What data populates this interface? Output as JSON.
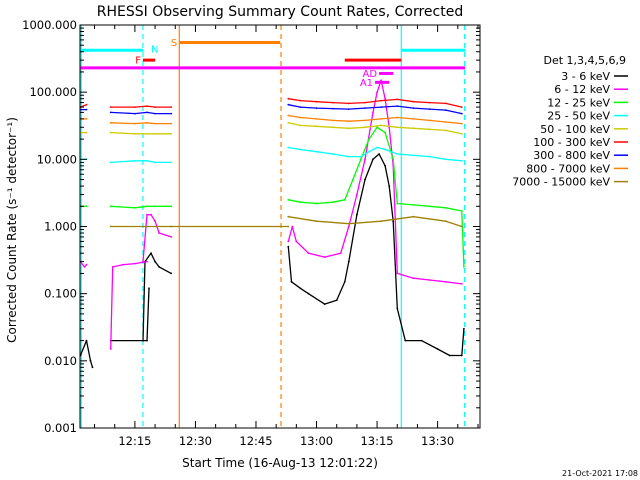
{
  "chart_data": {
    "type": "line",
    "title": "RHESSI Observing Summary Count Rates, Corrected",
    "xlabel": "Start Time (16-Aug-13 12:01:22)",
    "ylabel": "Corrected Count Rate (s⁻¹ detector⁻¹)",
    "x_unit": "minutes since 12:00",
    "xlim": [
      1.4,
      100.5
    ],
    "ylim": [
      0.001,
      1000
    ],
    "y_scale": "log",
    "x_tick_labels": [
      "12:15",
      "12:30",
      "12:45",
      "13:00",
      "13:15",
      "13:30"
    ],
    "x_tick_values": [
      15,
      30,
      45,
      60,
      75,
      90
    ],
    "y_tick_labels": [
      "1000.000",
      "100.000",
      "10.000",
      "1.000",
      "0.100",
      "0.010",
      "0.001"
    ],
    "y_tick_values": [
      1000,
      100,
      10,
      1,
      0.1,
      0.01,
      0.001
    ],
    "legend": {
      "title": "Det 1,3,4,5,6,9",
      "position": "right",
      "entries": [
        "3 - 6 keV",
        "6 - 12 keV",
        "12 - 25 keV",
        "25 - 50 keV",
        "50 - 100 keV",
        "100 - 300 keV",
        "300 - 800 keV",
        "800 - 7000 keV",
        "7000 - 15000 keV"
      ]
    },
    "series": [
      {
        "name": "3 - 6 keV",
        "color": "#000000",
        "segments": [
          [
            [
              1.5,
              0.012
            ],
            [
              3,
              0.02
            ],
            [
              4,
              0.01
            ],
            [
              4.5,
              0.008
            ]
          ],
          [
            [
              9,
              0.02
            ],
            [
              17,
              0.02
            ],
            [
              18,
              0.02
            ],
            [
              18.5,
              0.12
            ]
          ],
          [
            [
              17,
              0.02
            ],
            [
              17.5,
              0.3
            ],
            [
              19,
              0.4
            ],
            [
              20,
              0.3
            ],
            [
              21,
              0.25
            ],
            [
              24,
              0.2
            ]
          ],
          [
            [
              53,
              0.5
            ],
            [
              53.8,
              0.15
            ],
            [
              56,
              0.12
            ],
            [
              58,
              0.1
            ],
            [
              62,
              0.07
            ],
            [
              65,
              0.08
            ],
            [
              67,
              0.15
            ],
            [
              68,
              0.3
            ],
            [
              70,
              1.5
            ],
            [
              72,
              5
            ],
            [
              74,
              10
            ],
            [
              75.5,
              12
            ],
            [
              77,
              8
            ],
            [
              78,
              4
            ],
            [
              79,
              1.2
            ],
            [
              80,
              0.06
            ],
            [
              82,
              0.02
            ],
            [
              86,
              0.02
            ],
            [
              90,
              0.015
            ],
            [
              93,
              0.012
            ],
            [
              96,
              0.012
            ],
            [
              96.5,
              0.03
            ]
          ]
        ]
      },
      {
        "name": "6 - 12 keV",
        "color": "#ff00ff",
        "segments": [
          [
            [
              1.5,
              0.3
            ],
            [
              2.5,
              0.25
            ],
            [
              3,
              0.27
            ]
          ],
          [
            [
              9,
              0.015
            ],
            [
              9.5,
              0.25
            ],
            [
              12,
              0.27
            ],
            [
              15,
              0.28
            ],
            [
              18,
              0.3
            ]
          ],
          [
            [
              17,
              0.3
            ],
            [
              18,
              1.5
            ],
            [
              19,
              1.5
            ],
            [
              20,
              1.2
            ],
            [
              21,
              0.8
            ],
            [
              24,
              0.7
            ]
          ],
          [
            [
              53,
              0.6
            ],
            [
              54,
              1.0
            ],
            [
              55,
              0.6
            ],
            [
              58,
              0.4
            ],
            [
              62,
              0.35
            ],
            [
              66,
              0.4
            ],
            [
              68,
              1
            ],
            [
              70,
              3
            ],
            [
              72,
              10
            ],
            [
              74,
              50
            ],
            [
              75,
              100
            ],
            [
              76,
              150
            ],
            [
              77,
              80
            ],
            [
              78,
              30
            ],
            [
              79,
              8
            ],
            [
              80,
              0.2
            ],
            [
              84,
              0.17
            ],
            [
              88,
              0.16
            ],
            [
              92,
              0.15
            ],
            [
              96,
              0.14
            ]
          ]
        ]
      },
      {
        "name": "12 - 25 keV",
        "color": "#00ff00",
        "segments": [
          [
            [
              1.5,
              2
            ],
            [
              3,
              2
            ]
          ],
          [
            [
              9,
              2
            ],
            [
              15,
              1.9
            ],
            [
              18,
              2
            ],
            [
              20,
              2
            ],
            [
              24,
              2
            ]
          ],
          [
            [
              53,
              2.5
            ],
            [
              56,
              2.3
            ],
            [
              60,
              2.2
            ],
            [
              64,
              2.3
            ],
            [
              67,
              2.5
            ],
            [
              69,
              5
            ],
            [
              71,
              10
            ],
            [
              73,
              20
            ],
            [
              75,
              30
            ],
            [
              77,
              25
            ],
            [
              79,
              10
            ],
            [
              80,
              2.2
            ],
            [
              84,
              2.1
            ],
            [
              88,
              2.0
            ],
            [
              92,
              1.9
            ],
            [
              96,
              1.7
            ],
            [
              96.5,
              0.25
            ]
          ]
        ]
      },
      {
        "name": "25 - 50 keV",
        "color": "#00ffff",
        "segments": [
          [
            [
              1.5,
              10
            ],
            [
              3,
              10
            ]
          ],
          [
            [
              9,
              9
            ],
            [
              15,
              9.5
            ],
            [
              18,
              9.5
            ],
            [
              20,
              9
            ],
            [
              24,
              9
            ]
          ],
          [
            [
              53,
              15
            ],
            [
              56,
              14
            ],
            [
              60,
              13
            ],
            [
              64,
              12
            ],
            [
              68,
              11
            ],
            [
              71,
              11
            ],
            [
              73,
              13
            ],
            [
              75,
              15
            ],
            [
              77,
              14
            ],
            [
              80,
              12
            ],
            [
              84,
              11.5
            ],
            [
              88,
              11
            ],
            [
              92,
              10
            ],
            [
              96,
              9.5
            ]
          ]
        ]
      },
      {
        "name": "50 - 100 keV",
        "color": "#cccc00",
        "segments": [
          [
            [
              1.5,
              25
            ],
            [
              3,
              25
            ]
          ],
          [
            [
              9,
              25
            ],
            [
              15,
              24
            ],
            [
              18,
              24
            ],
            [
              20,
              24
            ],
            [
              24,
              24
            ]
          ],
          [
            [
              53,
              35
            ],
            [
              56,
              32
            ],
            [
              60,
              31
            ],
            [
              64,
              30
            ],
            [
              68,
              29
            ],
            [
              72,
              30
            ],
            [
              76,
              32
            ],
            [
              80,
              30
            ],
            [
              84,
              29
            ],
            [
              88,
              28
            ],
            [
              92,
              27
            ],
            [
              96,
              24
            ]
          ]
        ]
      },
      {
        "name": "100 - 300 keV",
        "color": "#ff0000",
        "segments": [
          [
            [
              1.5,
              60
            ],
            [
              3,
              65
            ]
          ],
          [
            [
              9,
              60
            ],
            [
              15,
              60
            ],
            [
              18,
              62
            ],
            [
              20,
              60
            ],
            [
              24,
              60
            ]
          ],
          [
            [
              53,
              80
            ],
            [
              56,
              75
            ],
            [
              60,
              72
            ],
            [
              64,
              70
            ],
            [
              68,
              68
            ],
            [
              72,
              70
            ],
            [
              76,
              75
            ],
            [
              80,
              78
            ],
            [
              84,
              72
            ],
            [
              88,
              70
            ],
            [
              92,
              68
            ],
            [
              96,
              60
            ]
          ]
        ]
      },
      {
        "name": "300 - 800 keV",
        "color": "#0000ff",
        "segments": [
          [
            [
              1.5,
              55
            ],
            [
              3,
              55
            ]
          ],
          [
            [
              9,
              50
            ],
            [
              15,
              48
            ],
            [
              18,
              50
            ],
            [
              20,
              48
            ],
            [
              24,
              48
            ]
          ],
          [
            [
              53,
              65
            ],
            [
              56,
              60
            ],
            [
              60,
              58
            ],
            [
              64,
              57
            ],
            [
              68,
              56
            ],
            [
              72,
              58
            ],
            [
              76,
              60
            ],
            [
              80,
              62
            ],
            [
              84,
              58
            ],
            [
              88,
              56
            ],
            [
              92,
              54
            ],
            [
              96,
              48
            ]
          ]
        ]
      },
      {
        "name": "800 - 7000 keV",
        "color": "#ff8000",
        "segments": [
          [
            [
              1.5,
              40
            ],
            [
              3,
              40
            ]
          ],
          [
            [
              9,
              35
            ],
            [
              15,
              34
            ],
            [
              18,
              35
            ],
            [
              20,
              34
            ],
            [
              24,
              34
            ]
          ],
          [
            [
              53,
              45
            ],
            [
              56,
              42
            ],
            [
              60,
              40
            ],
            [
              64,
              38
            ],
            [
              68,
              37
            ],
            [
              72,
              38
            ],
            [
              76,
              40
            ],
            [
              80,
              42
            ],
            [
              84,
              40
            ],
            [
              88,
              38
            ],
            [
              92,
              36
            ],
            [
              96,
              34
            ]
          ]
        ]
      },
      {
        "name": "7000 - 15000 keV",
        "color": "#a08000",
        "segments": [
          [
            [
              9,
              1.0
            ],
            [
              24,
              1.0
            ]
          ],
          [
            [
              24,
              1.0
            ],
            [
              53,
              1.0
            ]
          ],
          [
            [
              53,
              1.4
            ],
            [
              60,
              1.2
            ],
            [
              68,
              1.1
            ],
            [
              76,
              1.2
            ],
            [
              84,
              1.4
            ],
            [
              92,
              1.2
            ],
            [
              96,
              1.0
            ]
          ]
        ]
      }
    ],
    "annotations": {
      "horizontal_bars": [
        {
          "label": "",
          "color": "#00ffff",
          "x": [
            1.5,
            17
          ],
          "y": 420
        },
        {
          "label": "",
          "color": "#00ffff",
          "x": [
            81,
            96.8
          ],
          "y": 420
        },
        {
          "label": "",
          "color": "#ff00ff",
          "x": [
            1.5,
            96.8
          ],
          "y": 230
        },
        {
          "label": "F",
          "color": "#ff0000",
          "x": [
            17,
            20
          ],
          "y": 300
        },
        {
          "label": "S",
          "color": "#ff8000",
          "x": [
            26,
            51
          ],
          "y": 550
        },
        {
          "label": "",
          "color": "#ff0000",
          "x": [
            67,
            81
          ],
          "y": 300
        },
        {
          "label": "AD",
          "color": "#ff00ff",
          "x": [
            75.5,
            79
          ],
          "y": 190
        },
        {
          "label": "A1",
          "color": "#ff00ff",
          "x": [
            74.5,
            78
          ],
          "y": 140
        }
      ],
      "vertical_lines": [
        {
          "x": 1.7,
          "color": "#00ffff",
          "style": "solid"
        },
        {
          "x": 17,
          "color": "#00ffff",
          "style": "dashed"
        },
        {
          "x": 26,
          "color": "#ff8000",
          "style": "solid"
        },
        {
          "x": 51.2,
          "color": "#ff8000",
          "style": "dashed"
        },
        {
          "x": 81,
          "color": "#00ffff",
          "style": "solid"
        },
        {
          "x": 96.7,
          "color": "#00ffff",
          "style": "dashed"
        }
      ],
      "text_labels": [
        "N",
        "S",
        "F",
        "A1",
        "AD"
      ]
    },
    "footer": "21-Oct-2021 17:08"
  }
}
